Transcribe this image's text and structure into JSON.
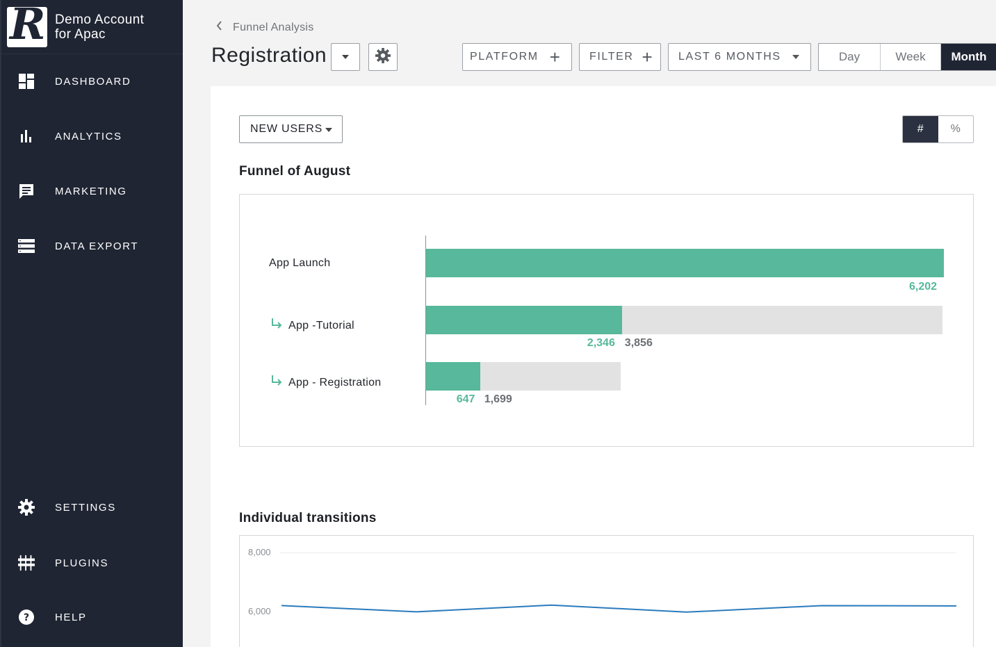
{
  "sidebar": {
    "account_name_line1": "Demo Account",
    "account_name_line2": "for Apac",
    "items": [
      {
        "label": "DASHBOARD",
        "icon": "dashboard-icon"
      },
      {
        "label": "ANALYTICS",
        "icon": "bar-chart-icon"
      },
      {
        "label": "MARKETING",
        "icon": "message-icon"
      },
      {
        "label": "DATA EXPORT",
        "icon": "server-icon"
      },
      {
        "label": "SETTINGS",
        "icon": "gear-icon"
      },
      {
        "label": "PLUGINS",
        "icon": "plugins-icon"
      },
      {
        "label": "HELP",
        "icon": "help-icon"
      }
    ]
  },
  "header": {
    "breadcrumb": "Funnel Analysis",
    "title": "Registration",
    "platform_label": "PLATFORM",
    "filter_label": "FILTER",
    "range_label": "LAST 6 MONTHS",
    "granularity": [
      {
        "label": "Day",
        "active": false
      },
      {
        "label": "Week",
        "active": false
      },
      {
        "label": "Month",
        "active": true
      }
    ]
  },
  "main": {
    "metric_dropdown": "NEW USERS",
    "toggle_count": "#",
    "toggle_percent": "%",
    "funnel_title": "Funnel of August",
    "transitions_title": "Individual transitions"
  },
  "colors": {
    "sidebar_bg": "#1f2533",
    "accent_green": "#57b89b",
    "line_blue": "#2a7bbd"
  },
  "chart_data": [
    {
      "type": "bar",
      "title": "Funnel of August",
      "categories": [
        "App Launch",
        "App -Tutorial",
        "App - Registration"
      ],
      "series": [
        {
          "values": [
            6202,
            2346,
            647
          ]
        },
        {
          "values": [
            null,
            3856,
            1699
          ]
        }
      ],
      "value_labels": {
        "converted": [
          "6,202",
          "2,346",
          "647"
        ],
        "dropped": [
          "",
          "3,856",
          "1,699"
        ]
      },
      "max": 6202
    },
    {
      "type": "line",
      "title": "Individual transitions",
      "ylim": [
        6000,
        8000
      ],
      "yticks": [
        "8,000",
        "6,000"
      ],
      "series": [
        {
          "values": [
            6202,
            5990,
            6220,
            5980,
            6200,
            6190
          ]
        }
      ]
    }
  ]
}
